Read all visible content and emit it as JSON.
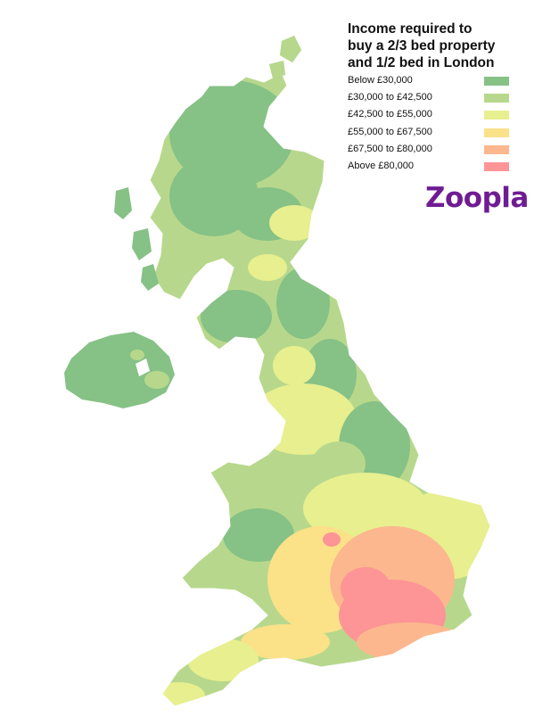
{
  "title": {
    "lines": [
      "Income required to",
      "buy a 2/3 bed property",
      "and 1/2 bed in London"
    ]
  },
  "legend": [
    {
      "label": "Below £30,000",
      "color": "#86c186"
    },
    {
      "label": "£30,000 to £42,500",
      "color": "#b7d88c"
    },
    {
      "label": "£42,500 to £55,000",
      "color": "#e7ef8f"
    },
    {
      "label": "£55,000 to £67,500",
      "color": "#fbe188"
    },
    {
      "label": "£67,500 to £80,000",
      "color": "#fcb78e"
    },
    {
      "label": "Above £80,000",
      "color": "#fd9496"
    }
  ],
  "brand": {
    "name": "Zoopla",
    "color": "#6f1c93"
  },
  "map": {
    "region": "United Kingdom",
    "outline_color": "#ffffff"
  }
}
